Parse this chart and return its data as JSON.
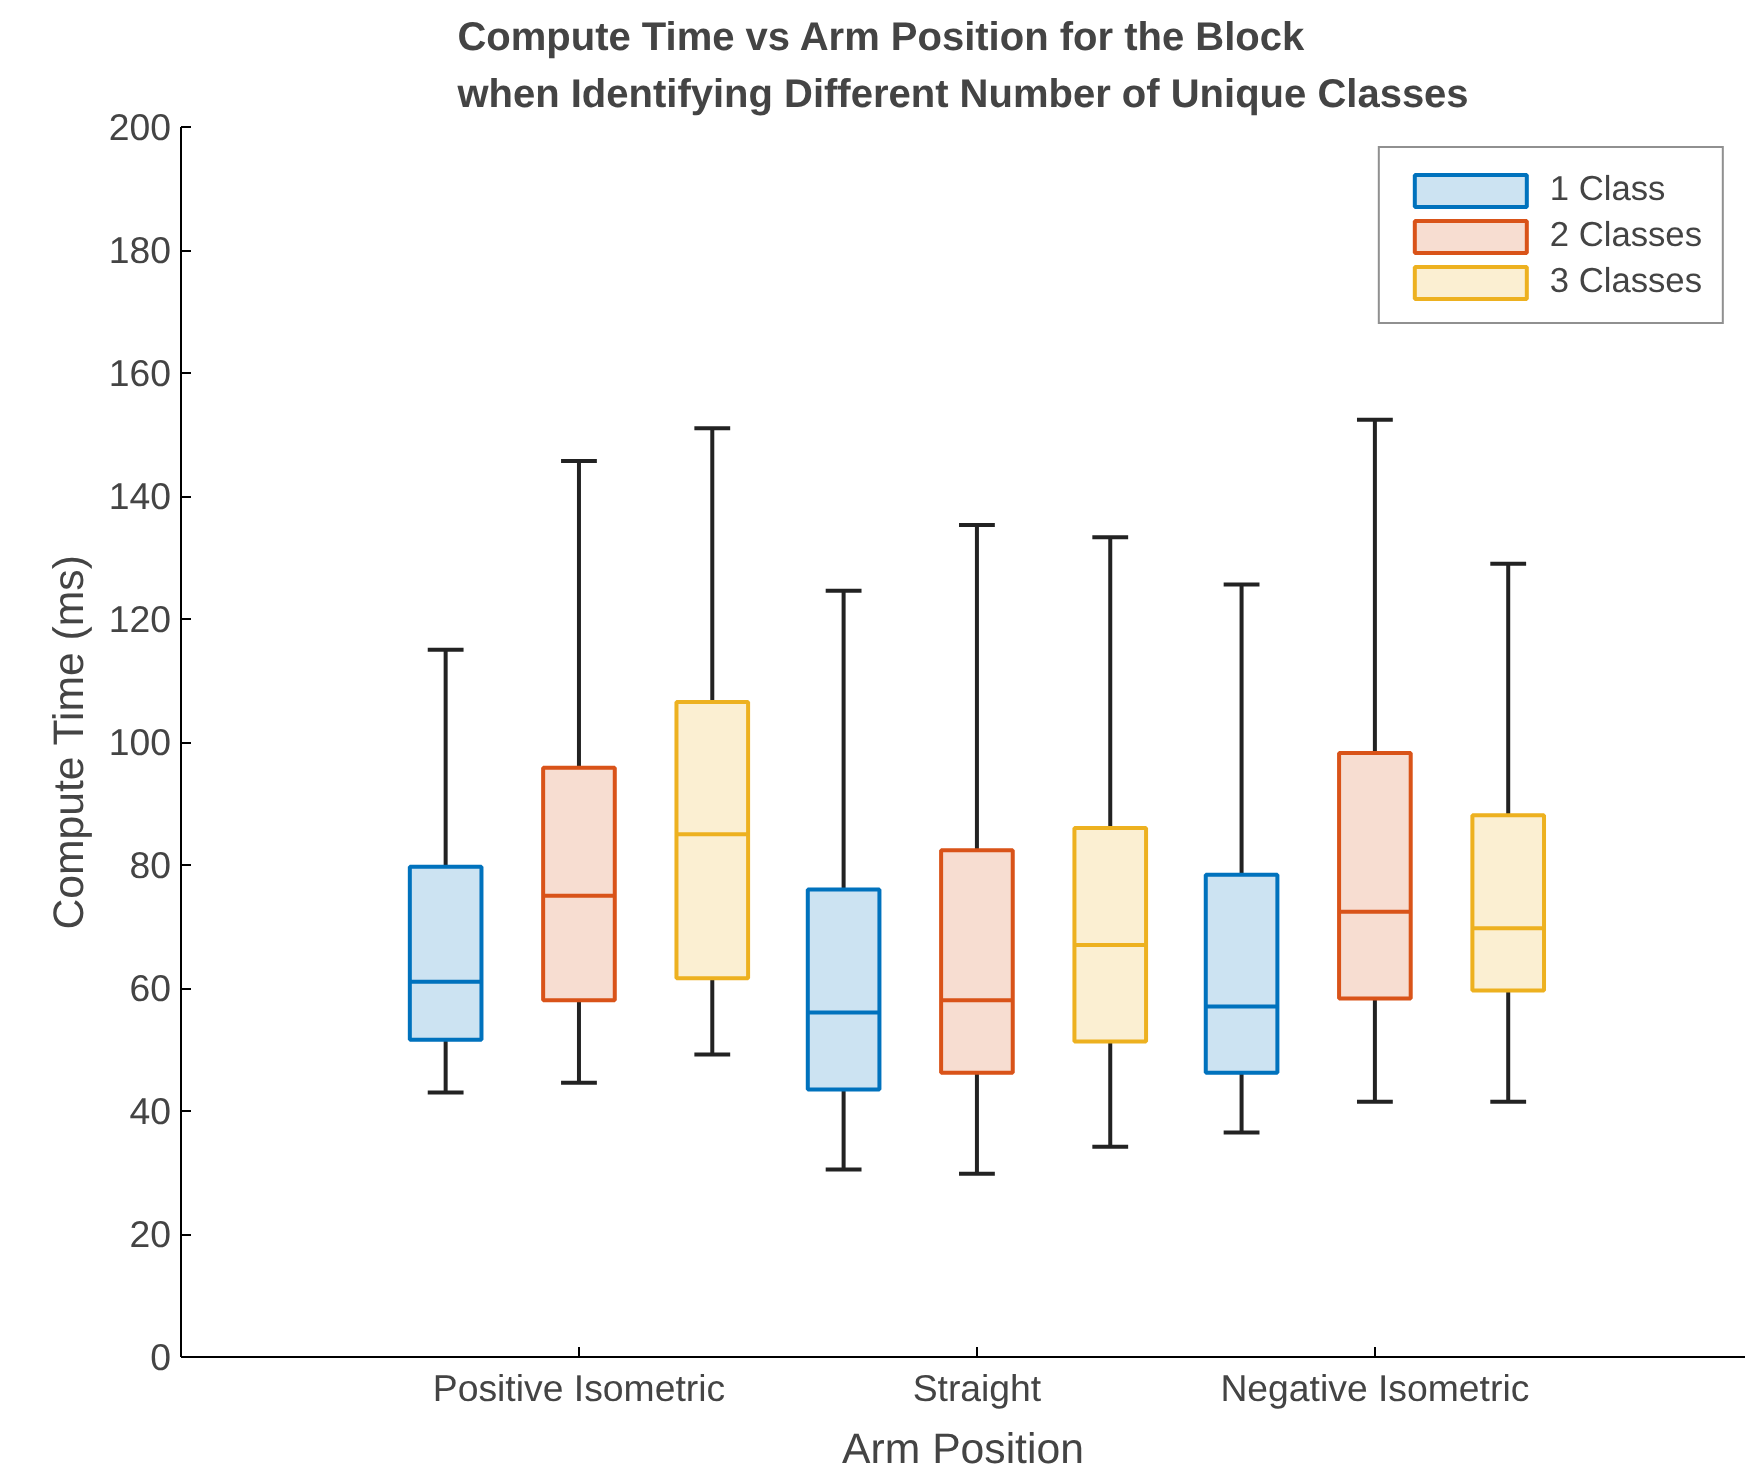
{
  "chart_data": {
    "type": "box",
    "title": "Compute Time vs Arm Position for the Block\nwhen Identifying Different Number of Unique Classes",
    "xlabel": "Arm Position",
    "ylabel": "Compute Time (ms)",
    "categories": [
      "Positive Isometric",
      "Straight",
      "Negative Isometric"
    ],
    "ylim": [
      0,
      200
    ],
    "yticks": [
      0,
      20,
      40,
      60,
      80,
      100,
      120,
      140,
      160,
      180,
      200
    ],
    "grid": false,
    "legend": "top right",
    "series": [
      {
        "name": "1 Class",
        "color": "#0072bd",
        "boxes": [
          {
            "low": 43,
            "q1": 51.6,
            "median": 61,
            "q3": 79.7,
            "high": 115
          },
          {
            "low": 30.5,
            "q1": 43.5,
            "median": 56,
            "q3": 76,
            "high": 124.6
          },
          {
            "low": 36.5,
            "q1": 46.2,
            "median": 57,
            "q3": 78.4,
            "high": 125.6
          }
        ]
      },
      {
        "name": "2 Classes",
        "color": "#d95319",
        "boxes": [
          {
            "low": 44.6,
            "q1": 58,
            "median": 75,
            "q3": 95.8,
            "high": 145.7
          },
          {
            "low": 29.8,
            "q1": 46.2,
            "median": 58,
            "q3": 82.4,
            "high": 135.3
          },
          {
            "low": 41.5,
            "q1": 58.3,
            "median": 72.4,
            "q3": 98.2,
            "high": 152.4
          }
        ]
      },
      {
        "name": "3 Classes",
        "color": "#edb120",
        "boxes": [
          {
            "low": 49.2,
            "q1": 61.6,
            "median": 85,
            "q3": 106.5,
            "high": 151
          },
          {
            "low": 34.2,
            "q1": 51.3,
            "median": 67,
            "q3": 86,
            "high": 133.3
          },
          {
            "low": 41.5,
            "q1": 59.6,
            "median": 69.7,
            "q3": 88.1,
            "high": 129
          }
        ]
      }
    ]
  }
}
